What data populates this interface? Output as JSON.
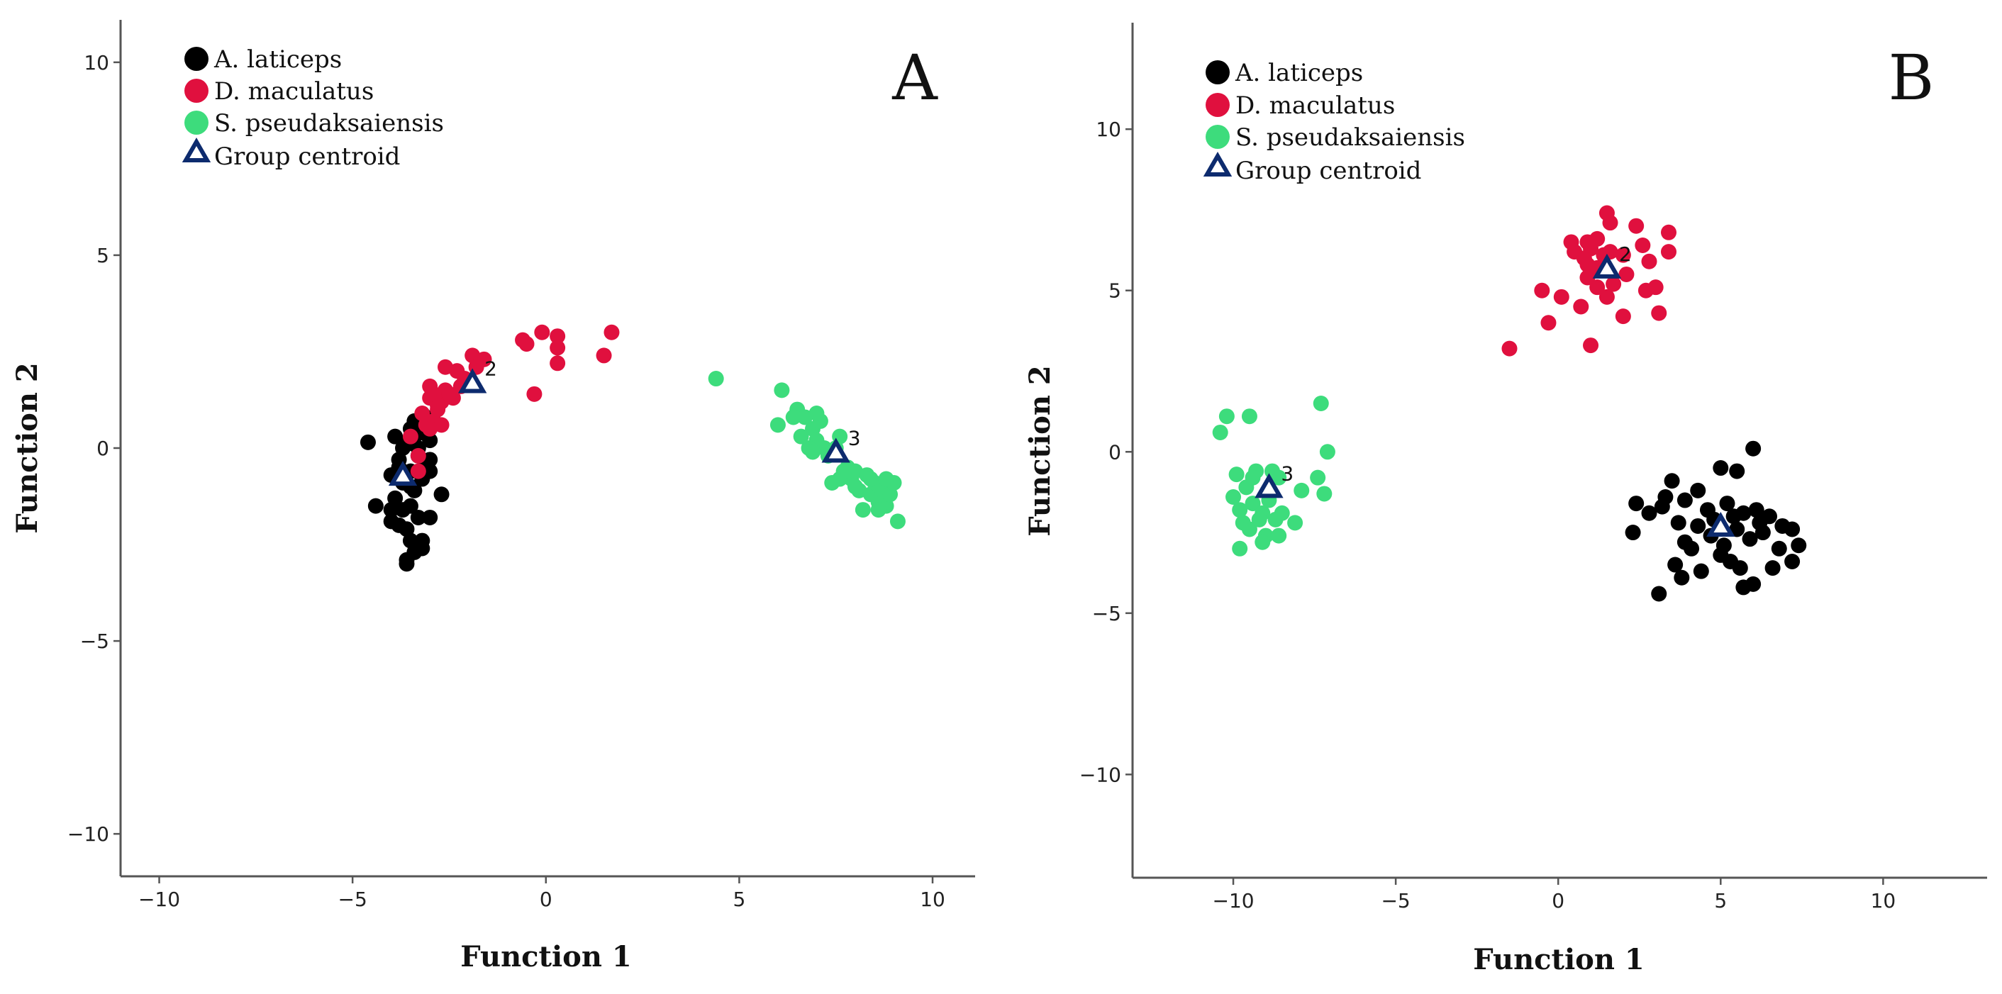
{
  "colors": {
    "A. laticeps": "#000000",
    "D. maculatus": "#e0103e",
    "S. pseudaksaiensis": "#3ddc7c",
    "centroid": "#0d2b6e"
  },
  "chart_data": [
    {
      "type": "scatter",
      "panel_label": "A",
      "xlabel": "Function 1",
      "ylabel": "Function 2",
      "xlim": [
        -11,
        11.1
      ],
      "ylim": [
        -11.1,
        11.1
      ],
      "xticks": [
        -10,
        -5,
        0,
        5,
        10
      ],
      "yticks": [
        -10,
        -5,
        0,
        5,
        10
      ],
      "legend": [
        "A. laticeps",
        "D. maculatus",
        "S. pseudaksaiensis",
        "Group centroid"
      ],
      "legend_position": "top-left",
      "series": [
        {
          "name": "A. laticeps",
          "points": [
            [
              -3.5,
              -0.6
            ],
            [
              -3.3,
              -0.2
            ],
            [
              -3.6,
              0.1
            ],
            [
              -3.2,
              0.4
            ],
            [
              -3.4,
              0.7
            ],
            [
              -3.0,
              0.2
            ],
            [
              -3.1,
              -0.4
            ],
            [
              -3.7,
              -0.9
            ],
            [
              -3.9,
              -1.3
            ],
            [
              -3.5,
              -1.5
            ],
            [
              -3.3,
              -1.8
            ],
            [
              -3.6,
              -2.1
            ],
            [
              -3.2,
              -2.4
            ],
            [
              -3.4,
              -2.7
            ],
            [
              -3.6,
              -2.9
            ],
            [
              -3.2,
              -2.6
            ],
            [
              -3.8,
              -0.3
            ],
            [
              -4.0,
              -0.7
            ],
            [
              -3.9,
              0.3
            ],
            [
              -4.6,
              0.15
            ],
            [
              -4.4,
              -1.5
            ],
            [
              -4.0,
              -1.9
            ],
            [
              -3.0,
              -1.8
            ],
            [
              -2.7,
              -1.2
            ],
            [
              -3.0,
              -0.3
            ],
            [
              -3.4,
              -1.1
            ],
            [
              -3.7,
              -1.6
            ],
            [
              -3.5,
              -2.4
            ],
            [
              -3.3,
              0.0
            ],
            [
              -3.5,
              0.5
            ],
            [
              -3.1,
              0.8
            ],
            [
              -3.8,
              -0.5
            ],
            [
              -3.0,
              -0.6
            ],
            [
              -3.6,
              -3.0
            ],
            [
              -3.5,
              -1.0
            ],
            [
              -3.8,
              -2.0
            ],
            [
              -4.0,
              -1.6
            ],
            [
              -3.2,
              -0.8
            ],
            [
              -3.4,
              0.3
            ],
            [
              -3.7,
              0.0
            ]
          ]
        },
        {
          "name": "D. maculatus",
          "points": [
            [
              -3.5,
              0.3
            ],
            [
              -3.2,
              0.9
            ],
            [
              -3.0,
              1.3
            ],
            [
              -2.9,
              0.7
            ],
            [
              -2.8,
              1.0
            ],
            [
              -2.7,
              1.2
            ],
            [
              -2.6,
              1.5
            ],
            [
              -2.4,
              1.3
            ],
            [
              -2.3,
              2.0
            ],
            [
              -2.1,
              1.8
            ],
            [
              -1.9,
              2.4
            ],
            [
              -1.6,
              2.3
            ],
            [
              -1.8,
              2.1
            ],
            [
              -2.6,
              2.1
            ],
            [
              -3.1,
              0.6
            ],
            [
              -3.3,
              -0.2
            ],
            [
              -3.0,
              1.6
            ],
            [
              -2.8,
              1.1
            ],
            [
              -2.5,
              1.4
            ],
            [
              -2.2,
              1.6
            ],
            [
              -3.3,
              -0.6
            ],
            [
              -0.6,
              2.8
            ],
            [
              -0.5,
              2.7
            ],
            [
              -0.1,
              3.0
            ],
            [
              0.3,
              2.9
            ],
            [
              0.3,
              2.6
            ],
            [
              0.3,
              2.2
            ],
            [
              1.7,
              3.0
            ],
            [
              1.5,
              2.4
            ],
            [
              -0.3,
              1.4
            ],
            [
              -3.0,
              0.5
            ],
            [
              -2.7,
              0.6
            ],
            [
              -2.9,
              1.4
            ]
          ]
        },
        {
          "name": "S. pseudaksaiensis",
          "points": [
            [
              4.4,
              1.8
            ],
            [
              6.1,
              1.5
            ],
            [
              6.0,
              0.6
            ],
            [
              6.5,
              1.0
            ],
            [
              6.7,
              0.8
            ],
            [
              6.9,
              0.5
            ],
            [
              7.0,
              0.2
            ],
            [
              7.1,
              0.7
            ],
            [
              7.2,
              0.0
            ],
            [
              7.3,
              -0.2
            ],
            [
              7.6,
              0.3
            ],
            [
              7.8,
              -0.5
            ],
            [
              7.9,
              -0.8
            ],
            [
              8.0,
              -0.6
            ],
            [
              8.1,
              -1.1
            ],
            [
              8.3,
              -0.7
            ],
            [
              8.4,
              -1.2
            ],
            [
              8.5,
              -0.9
            ],
            [
              8.6,
              -1.4
            ],
            [
              8.7,
              -1.1
            ],
            [
              8.8,
              -1.5
            ],
            [
              8.9,
              -1.2
            ],
            [
              9.0,
              -0.9
            ],
            [
              9.1,
              -1.9
            ],
            [
              8.2,
              -1.6
            ],
            [
              7.6,
              -0.8
            ],
            [
              6.8,
              0.0
            ],
            [
              6.9,
              -0.1
            ],
            [
              7.4,
              -0.9
            ],
            [
              8.0,
              -1.0
            ],
            [
              8.4,
              -0.8
            ],
            [
              7.5,
              0.0
            ],
            [
              6.6,
              0.3
            ],
            [
              8.6,
              -1.6
            ],
            [
              6.4,
              0.8
            ],
            [
              7.0,
              0.9
            ],
            [
              7.7,
              -0.6
            ],
            [
              8.8,
              -0.8
            ]
          ]
        }
      ],
      "centroids": [
        {
          "label": "",
          "x": -3.7,
          "y": -0.7
        },
        {
          "label": "2",
          "x": -1.9,
          "y": 1.7
        },
        {
          "label": "3",
          "x": 7.5,
          "y": -0.1
        }
      ]
    },
    {
      "type": "scatter",
      "panel_label": "B",
      "xlabel": "Function 1",
      "ylabel": "Function 2",
      "xlim": [
        -13.1,
        13.2
      ],
      "ylim": [
        -13.2,
        13.3
      ],
      "xticks": [
        -10,
        -5,
        0,
        5,
        10
      ],
      "yticks": [
        -10,
        -5,
        0,
        5,
        10
      ],
      "legend": [
        "A. laticeps",
        "D. maculatus",
        "S. pseudaksaiensis",
        "Group centroid"
      ],
      "legend_position": "top-left",
      "series": [
        {
          "name": "A. laticeps",
          "points": [
            [
              6.0,
              0.1
            ],
            [
              5.5,
              -0.6
            ],
            [
              5.0,
              -0.5
            ],
            [
              3.5,
              -0.9
            ],
            [
              3.3,
              -1.4
            ],
            [
              2.4,
              -1.6
            ],
            [
              2.8,
              -1.9
            ],
            [
              3.2,
              -1.7
            ],
            [
              3.9,
              -1.5
            ],
            [
              4.3,
              -1.2
            ],
            [
              4.6,
              -1.8
            ],
            [
              5.2,
              -1.6
            ],
            [
              5.7,
              -1.9
            ],
            [
              6.1,
              -1.8
            ],
            [
              6.5,
              -2.0
            ],
            [
              6.9,
              -2.3
            ],
            [
              7.2,
              -2.4
            ],
            [
              7.4,
              -2.9
            ],
            [
              7.2,
              -3.4
            ],
            [
              6.8,
              -3.0
            ],
            [
              6.3,
              -2.5
            ],
            [
              5.9,
              -2.7
            ],
            [
              5.5,
              -2.4
            ],
            [
              5.1,
              -2.9
            ],
            [
              4.7,
              -2.6
            ],
            [
              4.3,
              -2.3
            ],
            [
              3.9,
              -2.8
            ],
            [
              3.6,
              -3.5
            ],
            [
              3.8,
              -3.9
            ],
            [
              4.4,
              -3.7
            ],
            [
              5.0,
              -3.2
            ],
            [
              5.6,
              -3.6
            ],
            [
              6.0,
              -4.1
            ],
            [
              5.7,
              -4.2
            ],
            [
              3.7,
              -2.2
            ],
            [
              3.1,
              -4.4
            ],
            [
              2.3,
              -2.5
            ],
            [
              4.8,
              -2.1
            ],
            [
              5.4,
              -2.0
            ],
            [
              6.6,
              -3.6
            ],
            [
              4.1,
              -3.0
            ],
            [
              5.3,
              -3.4
            ],
            [
              6.2,
              -2.2
            ]
          ]
        },
        {
          "name": "D. maculatus",
          "points": [
            [
              1.5,
              7.4
            ],
            [
              1.6,
              7.1
            ],
            [
              0.4,
              6.5
            ],
            [
              0.9,
              6.5
            ],
            [
              1.0,
              6.3
            ],
            [
              1.2,
              6.6
            ],
            [
              1.4,
              6.1
            ],
            [
              0.8,
              6.0
            ],
            [
              0.9,
              5.8
            ],
            [
              1.2,
              5.7
            ],
            [
              1.6,
              6.2
            ],
            [
              2.0,
              6.1
            ],
            [
              2.4,
              7.0
            ],
            [
              2.6,
              6.4
            ],
            [
              2.8,
              5.9
            ],
            [
              3.0,
              5.1
            ],
            [
              3.4,
              6.8
            ],
            [
              3.4,
              6.2
            ],
            [
              2.1,
              5.5
            ],
            [
              1.7,
              5.2
            ],
            [
              0.9,
              5.4
            ],
            [
              1.2,
              5.1
            ],
            [
              0.7,
              4.5
            ],
            [
              1.5,
              4.8
            ],
            [
              2.7,
              5.0
            ],
            [
              3.1,
              4.3
            ],
            [
              2.0,
              4.2
            ],
            [
              0.1,
              4.8
            ],
            [
              -0.5,
              5.0
            ],
            [
              -0.3,
              4.0
            ],
            [
              1.0,
              3.3
            ],
            [
              -1.5,
              3.2
            ],
            [
              0.5,
              6.2
            ]
          ]
        },
        {
          "name": "S. pseudaksaiensis",
          "points": [
            [
              -10.2,
              1.1
            ],
            [
              -9.5,
              1.1
            ],
            [
              -7.3,
              1.5
            ],
            [
              -10.4,
              0.6
            ],
            [
              -7.1,
              0.0
            ],
            [
              -9.9,
              -0.7
            ],
            [
              -9.3,
              -0.6
            ],
            [
              -8.8,
              -0.6
            ],
            [
              -8.6,
              -0.8
            ],
            [
              -9.6,
              -1.1
            ],
            [
              -8.9,
              -1.2
            ],
            [
              -9.4,
              -1.6
            ],
            [
              -9.8,
              -1.8
            ],
            [
              -9.1,
              -1.9
            ],
            [
              -8.7,
              -2.1
            ],
            [
              -9.5,
              -2.4
            ],
            [
              -9.0,
              -2.6
            ],
            [
              -8.6,
              -2.6
            ],
            [
              -9.8,
              -3.0
            ],
            [
              -9.1,
              -2.8
            ],
            [
              -8.1,
              -2.2
            ],
            [
              -7.4,
              -0.8
            ],
            [
              -7.2,
              -1.3
            ],
            [
              -7.9,
              -1.2
            ],
            [
              -9.4,
              -0.8
            ],
            [
              -8.9,
              -1.5
            ],
            [
              -10.0,
              -1.4
            ],
            [
              -9.7,
              -2.2
            ],
            [
              -8.5,
              -1.9
            ],
            [
              -9.2,
              -2.1
            ]
          ]
        }
      ],
      "centroids": [
        {
          "label": "",
          "x": 5.0,
          "y": -2.3
        },
        {
          "label": "2",
          "x": 1.5,
          "y": 5.7
        },
        {
          "label": "3",
          "x": -8.9,
          "y": -1.1
        }
      ]
    }
  ]
}
